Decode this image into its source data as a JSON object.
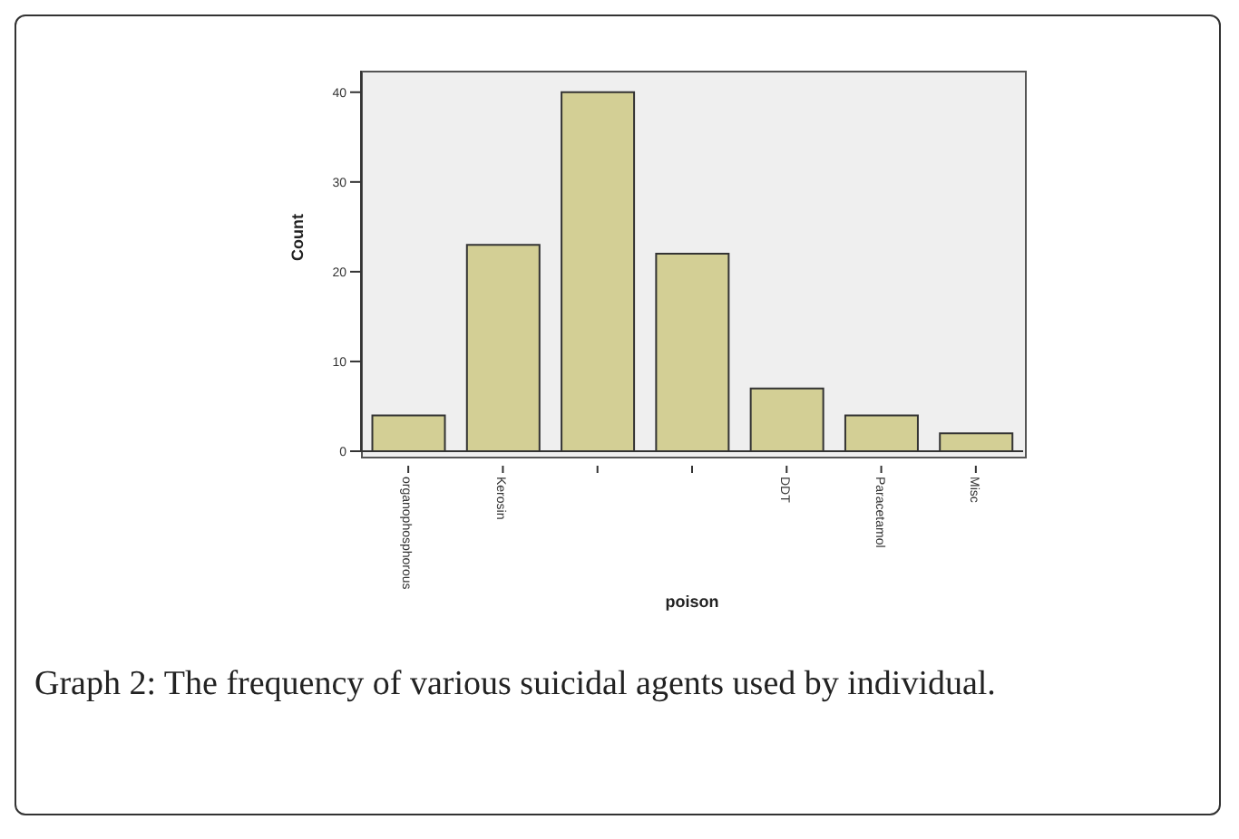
{
  "chart_data": {
    "type": "bar",
    "xlabel": "poison",
    "ylabel": "Count",
    "categories": [
      "organophosphorous",
      "Kerosin",
      null,
      null,
      "DDT",
      "Paracetamol",
      "Misc"
    ],
    "values": [
      4,
      23,
      40,
      22,
      7,
      4,
      2
    ],
    "color": "#d3cf95",
    "ylim": [
      0,
      42.4
    ],
    "yticks": [
      0,
      10,
      20,
      30,
      40
    ],
    "grid": false,
    "legend": false,
    "annotations": [
      "Graph 2: The frequency of various suicidal agents used by individual."
    ]
  }
}
